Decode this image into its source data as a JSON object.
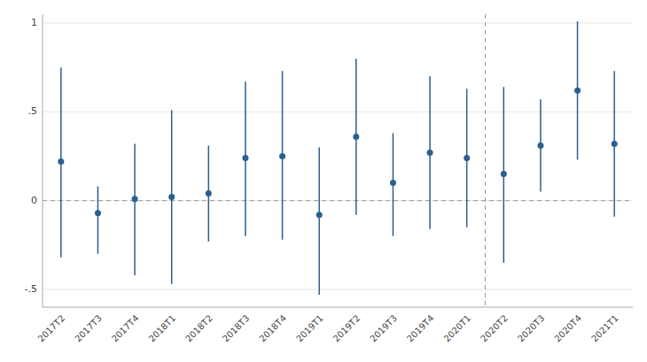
{
  "chart_data": {
    "type": "errorbar",
    "categories": [
      "2017T2",
      "2017T3",
      "2017T4",
      "2018T1",
      "2018T2",
      "2018T3",
      "2018T4",
      "2019T1",
      "2019T2",
      "2019T3",
      "2019T4",
      "2020T1",
      "2020T2",
      "2020T3",
      "2020T4",
      "2021T1"
    ],
    "values": [
      0.22,
      -0.07,
      0.01,
      0.02,
      0.04,
      0.24,
      0.25,
      -0.08,
      0.36,
      0.1,
      0.27,
      0.24,
      0.15,
      0.31,
      0.62,
      0.32
    ],
    "ci_upper": [
      0.75,
      0.08,
      0.32,
      0.51,
      0.31,
      0.67,
      0.73,
      0.3,
      0.8,
      0.38,
      0.7,
      0.63,
      0.64,
      0.57,
      1.01,
      0.73
    ],
    "ci_lower": [
      -0.32,
      -0.3,
      -0.42,
      -0.47,
      -0.23,
      -0.2,
      -0.22,
      -0.53,
      -0.08,
      -0.2,
      -0.16,
      -0.15,
      -0.35,
      0.05,
      0.23,
      -0.09
    ],
    "color": "#2b5f8e",
    "zero_line": 0,
    "vline": 11.5,
    "ylim": [
      -0.6,
      1.05
    ],
    "yticks": [
      {
        "value": -0.5,
        "label": "-.5"
      },
      0,
      {
        "value": 0.5,
        "label": ".5"
      },
      1
    ],
    "grid": true
  }
}
